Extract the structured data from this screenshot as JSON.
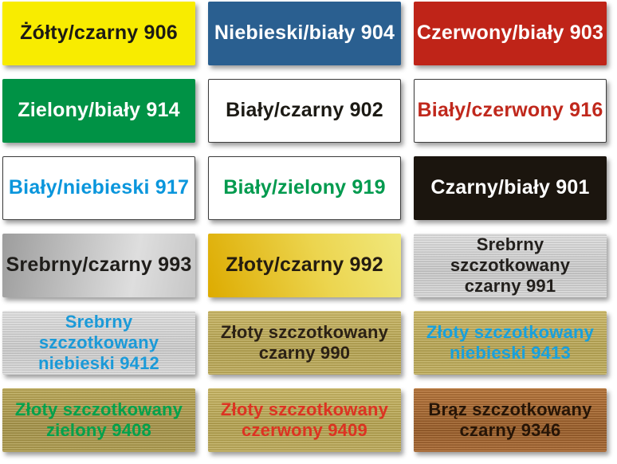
{
  "page": {
    "background": "#ffffff",
    "description": "Color swatch chart of engraving laminate finishes with Polish labels and product codes"
  },
  "swatches": [
    {
      "code": "906",
      "label": "Żółty/czarny 906",
      "material": "solid-yellow",
      "bg": "#f8ec00",
      "fg": "#1c1a14"
    },
    {
      "code": "904",
      "label": "Niebieski/biały 904",
      "material": "solid-blue",
      "bg": "#2a5f90",
      "fg": "#ffffff"
    },
    {
      "code": "903",
      "label": "Czerwony/biały 903",
      "material": "solid-red",
      "bg": "#bf2418",
      "fg": "#ffffff"
    },
    {
      "code": "914",
      "label": "Zielony/biały 914",
      "material": "solid-green",
      "bg": "#009245",
      "fg": "#ffffff"
    },
    {
      "code": "902",
      "label": "Biały/czarny 902",
      "material": "solid-white",
      "bg": "#ffffff",
      "fg": "#1c1a14",
      "border": "#3c3c3c"
    },
    {
      "code": "916",
      "label": "Biały/czerwony 916",
      "material": "solid-white",
      "bg": "#ffffff",
      "fg": "#c0281c",
      "border": "#3c3c3c"
    },
    {
      "code": "917",
      "label": "Biały/niebieski 917",
      "material": "solid-white",
      "bg": "#ffffff",
      "fg": "#0a96dc",
      "border": "#3c3c3c"
    },
    {
      "code": "919",
      "label": "Biały/zielony 919",
      "material": "solid-white",
      "bg": "#ffffff",
      "fg": "#009a4e",
      "border": "#3c3c3c"
    },
    {
      "code": "901",
      "label": "Czarny/biały 901",
      "material": "solid-black",
      "bg": "#1b150e",
      "fg": "#ffffff"
    },
    {
      "code": "993",
      "label": "Srebrny/czarny 993",
      "material": "silver-gloss",
      "bg": "linear-gradient(100deg, #9d9d9d, #dedede 68%, #c6c6c6)",
      "fg": "#1f1d1a"
    },
    {
      "code": "992",
      "label": "Złoty/czarny 992",
      "material": "gold-gloss",
      "bg": "linear-gradient(70deg, #ddab00, #ecd54f 58%, #f0e87d)",
      "fg": "#241c10"
    },
    {
      "code": "991",
      "label": "Srebrny szczotkowany\nczarny 991",
      "material": "brushed-silver",
      "bg": "repeating-linear-gradient(180deg, rgba(255,255,255,0.35) 0px, rgba(255,255,255,0.35) 1px, rgba(110,110,110,0.22) 2px, rgba(210,210,210,0.12) 3px), linear-gradient(180deg, #dadada, #bfbfbf 60%, #d2d2d2)",
      "fg": "#221f1c"
    },
    {
      "code": "9412",
      "label": "Srebrny szczotkowany\nniebieski 9412",
      "material": "brushed-silver",
      "bg": "repeating-linear-gradient(180deg, rgba(255,255,255,0.35) 0px, rgba(255,255,255,0.35) 1px, rgba(110,110,110,0.22) 2px, rgba(210,210,210,0.12) 3px), linear-gradient(180deg, #dcdcdc, #c2c2c2 60%, #d4d4d4)",
      "fg": "#1b9ad8"
    },
    {
      "code": "990",
      "label": "Złoty szczotkowany\nczarny 990",
      "material": "brushed-gold",
      "bg": "repeating-linear-gradient(180deg, rgba(255,246,200,0.30) 0px, rgba(255,246,200,0.30) 1px, rgba(90,75,20,0.20) 2px, rgba(225,205,125,0.12) 3px), linear-gradient(180deg, #c2af5e, #a99747 60%, #b5a354)",
      "fg": "#2b2115"
    },
    {
      "code": "9413",
      "label": "Złoty szczotkowany\nniebieski 9413",
      "material": "brushed-gold",
      "bg": "repeating-linear-gradient(180deg, rgba(255,246,200,0.30) 0px, rgba(255,246,200,0.30) 1px, rgba(90,75,20,0.20) 2px, rgba(225,205,125,0.12) 3px), linear-gradient(180deg, #c6b263, #ab9949 60%, #b8a656)",
      "fg": "#18a0dc"
    },
    {
      "code": "9408",
      "label": "Złoty szczotkowany\nzielony 9408",
      "material": "brushed-gold",
      "bg": "repeating-linear-gradient(180deg, rgba(255,246,200,0.28) 0px, rgba(255,246,200,0.28) 1px, rgba(80,68,18,0.22) 2px, rgba(215,195,115,0.12) 3px), linear-gradient(180deg, #b3a050, #998740 60%, #a59347)",
      "fg": "#00a14c"
    },
    {
      "code": "9409",
      "label": "Złoty szczotkowany\nczerwony 9409",
      "material": "brushed-gold",
      "bg": "repeating-linear-gradient(180deg, rgba(255,246,200,0.30) 0px, rgba(255,246,200,0.30) 1px, rgba(90,75,20,0.20) 2px, rgba(225,205,125,0.12) 3px), linear-gradient(180deg, #c0ad5c, #a89646 60%, #b4a253)",
      "fg": "#dc3322"
    },
    {
      "code": "9346",
      "label": "Brąz szczotkowany\nczarny 9346",
      "material": "brushed-bronze",
      "bg": "repeating-linear-gradient(180deg, rgba(255,210,160,0.26) 0px, rgba(255,210,160,0.26) 1px, rgba(60,30,5,0.24) 2px, rgba(200,140,80,0.12) 3px), linear-gradient(180deg, #b06f36, #8e5423 65%, #a26330)",
      "fg": "#261507"
    }
  ]
}
